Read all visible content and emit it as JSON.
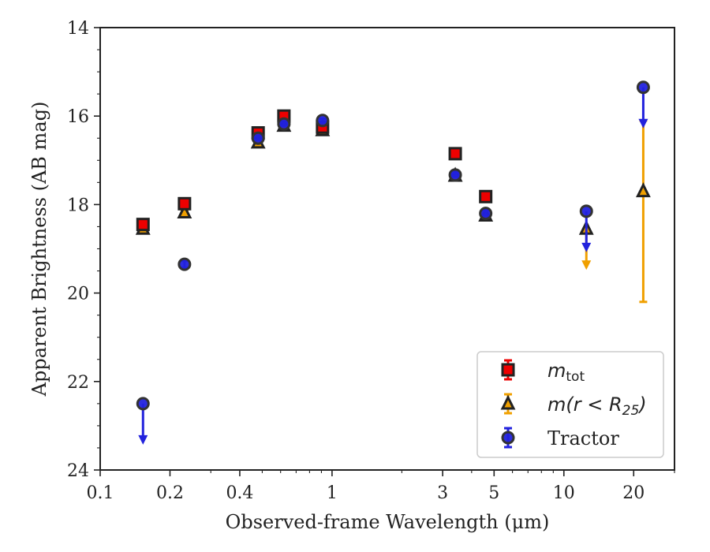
{
  "chart_data": {
    "type": "scatter",
    "xlabel": "Observed-frame Wavelength (μm)",
    "ylabel": "Apparent Brightness (AB mag)",
    "x_scale": "log",
    "xlim": [
      0.1,
      30
    ],
    "ylim": [
      24,
      14
    ],
    "y_inverted": true,
    "x_ticks": [
      {
        "value": 0.1,
        "label": "0.1"
      },
      {
        "value": 0.2,
        "label": "0.2"
      },
      {
        "value": 0.4,
        "label": "0.4"
      },
      {
        "value": 1,
        "label": "1"
      },
      {
        "value": 3,
        "label": "3"
      },
      {
        "value": 5,
        "label": "5"
      },
      {
        "value": 10,
        "label": "10"
      },
      {
        "value": 20,
        "label": "20"
      }
    ],
    "y_ticks": [
      {
        "value": 14,
        "label": "14"
      },
      {
        "value": 16,
        "label": "16"
      },
      {
        "value": 18,
        "label": "18"
      },
      {
        "value": 20,
        "label": "20"
      },
      {
        "value": 22,
        "label": "22"
      },
      {
        "value": 24,
        "label": "24"
      }
    ],
    "legend": {
      "placement": "lower-right"
    },
    "series": [
      {
        "name": "m_tot",
        "legend_label": {
          "symbol": "m",
          "subscript": "tot"
        },
        "marker": "square",
        "color": "#ee0000",
        "edge_color": "#222222",
        "points": [
          {
            "x": 0.153,
            "y": 18.45,
            "yerr": 0.1
          },
          {
            "x": 0.231,
            "y": 17.98,
            "yerr": 0.05
          },
          {
            "x": 0.48,
            "y": 16.38,
            "yerr": 0.03
          },
          {
            "x": 0.62,
            "y": 16.0,
            "yerr": 0.03
          },
          {
            "x": 0.91,
            "y": 16.25,
            "yerr": 0.03
          },
          {
            "x": 3.4,
            "y": 16.85,
            "yerr": 0.03
          },
          {
            "x": 4.6,
            "y": 17.82,
            "yerr": 0.05
          }
        ]
      },
      {
        "name": "m(r < R25)",
        "legend_label": {
          "text": "m(r < R",
          "subscript": "25",
          "suffix": ")"
        },
        "marker": "triangle",
        "color": "#f0a000",
        "edge_color": "#222222",
        "points": [
          {
            "x": 0.153,
            "y": 18.55,
            "yerr": 0.08
          },
          {
            "x": 0.231,
            "y": 18.18,
            "yerr": 0.05
          },
          {
            "x": 0.48,
            "y": 16.6,
            "yerr": 0.03
          },
          {
            "x": 0.62,
            "y": 16.22,
            "yerr": 0.03
          },
          {
            "x": 0.91,
            "y": 16.32,
            "yerr": 0.03
          },
          {
            "x": 3.4,
            "y": 17.35,
            "yerr": 0.03
          },
          {
            "x": 4.6,
            "y": 18.25,
            "yerr": 0.05
          },
          {
            "x": 12.5,
            "y": 18.55,
            "upper_limit": true
          },
          {
            "x": 22.0,
            "y": 17.7,
            "yerr_low": 2.5,
            "yerr_high": 1.6
          }
        ]
      },
      {
        "name": "Tractor",
        "legend_label": {
          "text": "Tractor"
        },
        "marker": "circle",
        "color": "#2222dd",
        "edge_color": "#333333",
        "points": [
          {
            "x": 0.153,
            "y": 22.5,
            "upper_limit": true
          },
          {
            "x": 0.231,
            "y": 19.35,
            "yerr": 0.08
          },
          {
            "x": 0.48,
            "y": 16.5,
            "yerr": 0.04
          },
          {
            "x": 0.62,
            "y": 16.18,
            "yerr": 0.04
          },
          {
            "x": 0.91,
            "y": 16.1,
            "yerr": 0.04
          },
          {
            "x": 3.4,
            "y": 17.33,
            "yerr": 0.04
          },
          {
            "x": 4.6,
            "y": 18.2,
            "yerr": 0.06
          },
          {
            "x": 12.5,
            "y": 18.15,
            "upper_limit": true
          },
          {
            "x": 22.0,
            "y": 15.35,
            "upper_limit": true
          }
        ]
      }
    ]
  }
}
